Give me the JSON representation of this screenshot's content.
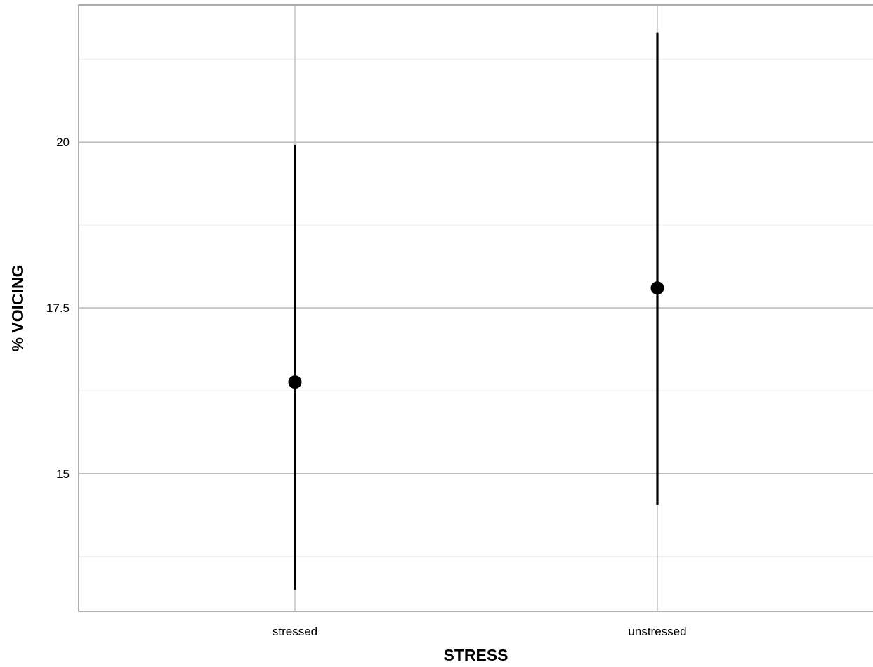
{
  "chart_data": {
    "type": "errorbar",
    "title": "",
    "xlabel": "STRESS",
    "ylabel": "% VOICING",
    "categories": [
      "stressed",
      "unstressed"
    ],
    "series": [
      {
        "points": [
          {
            "x": "stressed",
            "y": 16.38,
            "ymin": 13.25,
            "ymax": 19.95
          },
          {
            "x": "unstressed",
            "y": 17.8,
            "ymin": 14.53,
            "ymax": 21.65
          }
        ]
      }
    ],
    "y_ticks": [
      15,
      17.5,
      20
    ],
    "y_tick_labels": [
      "15",
      "17.5",
      "20"
    ],
    "ylim": [
      12.92,
      22.07
    ],
    "grid": true,
    "legend": "none",
    "colors": {
      "marks": "#000000",
      "major_grid": "#bdbdbd",
      "minor_grid": "#ececec",
      "panel_border": "#999999"
    }
  }
}
